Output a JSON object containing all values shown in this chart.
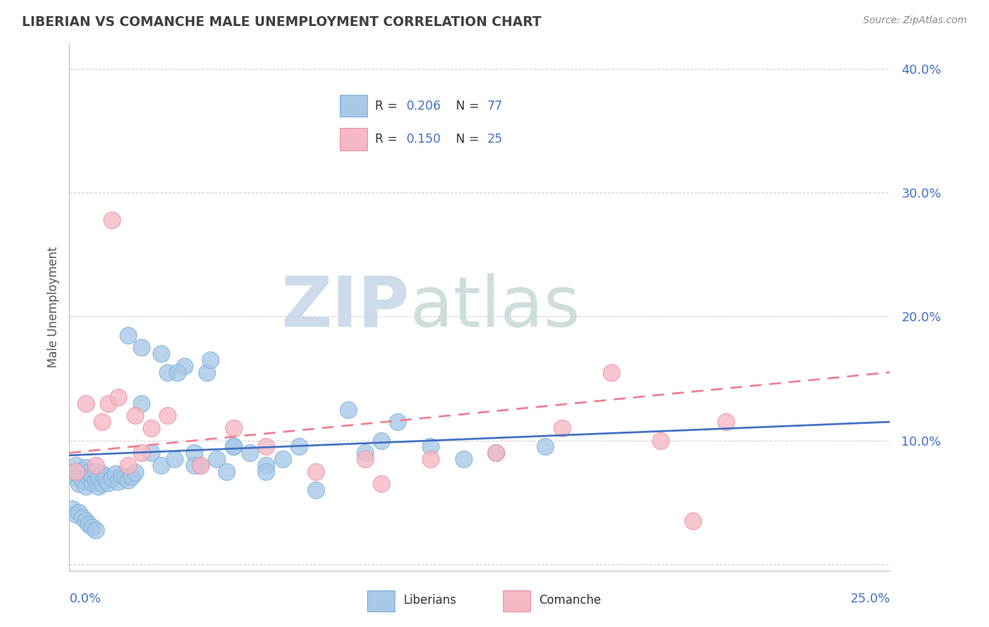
{
  "title": "LIBERIAN VS COMANCHE MALE UNEMPLOYMENT CORRELATION CHART",
  "source": "Source: ZipAtlas.com",
  "ylabel": "Male Unemployment",
  "xlim": [
    0.0,
    0.25
  ],
  "ylim": [
    -0.005,
    0.42
  ],
  "yticks": [
    0.1,
    0.2,
    0.3,
    0.4
  ],
  "ytick_labels": [
    "10.0%",
    "20.0%",
    "30.0%",
    "40.0%"
  ],
  "grid_yticks": [
    0.0,
    0.1,
    0.2,
    0.3,
    0.4
  ],
  "legend_r1": "0.206",
  "legend_n1": "77",
  "legend_r2": "0.150",
  "legend_n2": "25",
  "liberian_color": "#a8c8e8",
  "liberian_edge": "#7ab0d8",
  "comanche_color": "#f5b8c4",
  "comanche_edge": "#e890a0",
  "liberian_line_color": "#4472c4",
  "comanche_line_color": "#f08090",
  "text_blue": "#4472c4",
  "title_color": "#404040",
  "source_color": "#888888",
  "ylabel_color": "#555555",
  "grid_color": "#d0d0d0",
  "watermark_zip_color": "#ccd8e8",
  "watermark_atlas_color": "#d0d8e0"
}
